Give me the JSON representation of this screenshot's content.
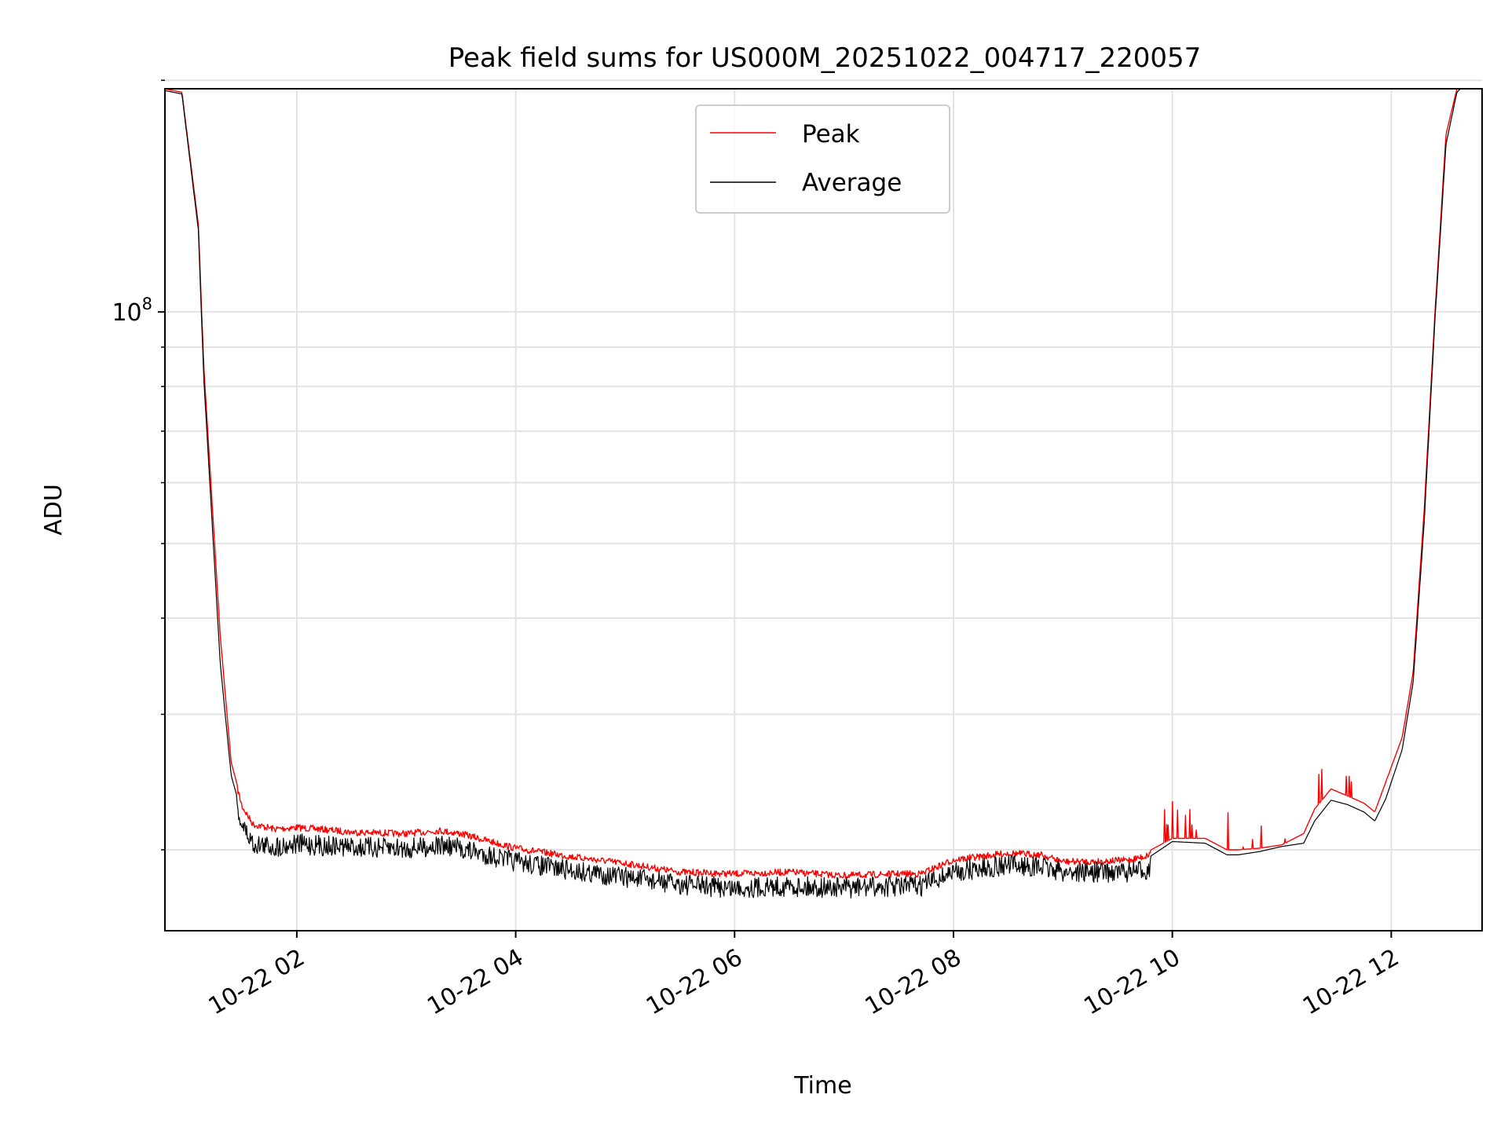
{
  "chart_data": {
    "type": "line",
    "title": "Peak field sums for US000M_20251022_004717_220057",
    "xlabel": "Time",
    "ylabel": "ADU",
    "yscale": "log",
    "xlim_hours": [
      0.795,
      12.83
    ],
    "ylim": [
      15700000,
      195000000
    ],
    "major_ytick": {
      "base": "10",
      "exponent": "8",
      "value": 100000000
    },
    "minor_yticks": [
      20000000,
      30000000,
      40000000,
      50000000,
      60000000,
      70000000,
      80000000,
      90000000,
      200000000
    ],
    "xticks": [
      {
        "value": 2,
        "label": "10-22 02"
      },
      {
        "value": 4,
        "label": "10-22 04"
      },
      {
        "value": 6,
        "label": "10-22 06"
      },
      {
        "value": 8,
        "label": "10-22 08"
      },
      {
        "value": 10,
        "label": "10-22 10"
      },
      {
        "value": 12,
        "label": "10-22 12"
      }
    ],
    "grid": true,
    "legend": {
      "position": "top-center",
      "entries": [
        "Peak",
        "Average"
      ]
    },
    "series": [
      {
        "name": "Peak",
        "color": "#ff0000",
        "x": [
          0.79,
          0.95,
          1.1,
          1.15,
          1.3,
          1.4,
          1.5,
          1.6,
          1.8,
          2.0,
          2.2,
          2.5,
          3.0,
          3.3,
          3.5,
          4.0,
          4.5,
          5.0,
          5.5,
          6.0,
          6.5,
          7.0,
          7.5,
          7.7,
          8.0,
          8.5,
          8.8,
          9.0,
          9.3,
          9.6,
          9.75,
          10.0,
          10.3,
          10.5,
          10.6,
          10.8,
          11.0,
          11.2,
          11.3,
          11.45,
          11.6,
          11.75,
          11.85,
          11.95,
          12.1,
          12.2,
          12.3,
          12.4,
          12.5,
          12.6,
          12.65
        ],
        "y": [
          195000000,
          193000000,
          130000000,
          85000000,
          38000000,
          26000000,
          23000000,
          21800000,
          21500000,
          21600000,
          21500000,
          21300000,
          21200000,
          21400000,
          21200000,
          20300000,
          19800000,
          19400000,
          18900000,
          18800000,
          18900000,
          18700000,
          18800000,
          18800000,
          19600000,
          20000000,
          19900000,
          19500000,
          19500000,
          19600000,
          19800000,
          20700000,
          20700000,
          20000000,
          20000000,
          20100000,
          20300000,
          21000000,
          22600000,
          24000000,
          23500000,
          23000000,
          22400000,
          24500000,
          28000000,
          34000000,
          55000000,
          100000000,
          170000000,
          195000000,
          197000000
        ]
      },
      {
        "name": "Average",
        "color": "#000000",
        "x": [
          0.79,
          0.95,
          1.1,
          1.15,
          1.3,
          1.4,
          1.5,
          1.6,
          1.8,
          2.0,
          2.2,
          2.5,
          3.0,
          3.3,
          3.5,
          4.0,
          4.5,
          5.0,
          5.5,
          6.0,
          6.5,
          7.0,
          7.5,
          7.7,
          8.0,
          8.5,
          8.8,
          9.0,
          9.3,
          9.6,
          9.75,
          10.0,
          10.3,
          10.5,
          10.6,
          10.8,
          11.0,
          11.2,
          11.3,
          11.45,
          11.6,
          11.75,
          11.85,
          11.95,
          12.1,
          12.2,
          12.3,
          12.4,
          12.5,
          12.6,
          12.65
        ],
        "y": [
          194000000,
          192000000,
          128000000,
          82000000,
          35000000,
          25000000,
          22200000,
          21000000,
          20800000,
          21000000,
          20900000,
          20800000,
          20700000,
          20900000,
          20700000,
          19900000,
          19400000,
          19000000,
          18600000,
          18400000,
          18500000,
          18400000,
          18500000,
          18500000,
          19300000,
          19700000,
          19600000,
          19300000,
          19300000,
          19300000,
          19400000,
          20500000,
          20400000,
          19700000,
          19700000,
          19900000,
          20200000,
          20400000,
          21800000,
          23200000,
          22900000,
          22400000,
          21800000,
          23300000,
          27000000,
          33000000,
          53000000,
          98000000,
          165000000,
          193000000,
          196000000
        ]
      }
    ]
  }
}
